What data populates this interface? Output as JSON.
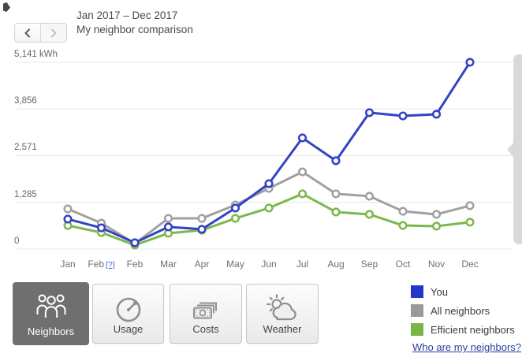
{
  "header": {
    "title": "Jan 2017 – Dec 2017",
    "subtitle": "My neighbor comparison"
  },
  "chart_data": {
    "type": "line",
    "title": "My neighbor comparison",
    "unit": "kWh",
    "categories": [
      "Jan",
      "Feb",
      "Feb",
      "Mar",
      "Apr",
      "May",
      "Jun",
      "Jul",
      "Aug",
      "Sep",
      "Oct",
      "Nov",
      "Dec"
    ],
    "estimated_marker": {
      "index": 1,
      "text": "[?]"
    },
    "series": [
      {
        "name": "You",
        "color": "#3442c4",
        "values": [
          825,
          585,
          175,
          610,
          545,
          1130,
          1800,
          3060,
          2430,
          3755,
          3665,
          3710,
          5141
        ]
      },
      {
        "name": "All neighbors",
        "color": "#a1a1a1",
        "values": [
          1105,
          715,
          150,
          845,
          845,
          1215,
          1670,
          2125,
          1520,
          1455,
          1040,
          955,
          1195
        ]
      },
      {
        "name": "Efficient neighbors",
        "color": "#7cb84d",
        "values": [
          650,
          455,
          110,
          435,
          520,
          845,
          1130,
          1520,
          1020,
          955,
          650,
          630,
          740
        ]
      }
    ],
    "y_ticks": [
      {
        "value": 5141,
        "label": "5,141 kWh"
      },
      {
        "value": 3856,
        "label": "3,856"
      },
      {
        "value": 2571,
        "label": "2,571"
      },
      {
        "value": 1285,
        "label": "1,285"
      },
      {
        "value": 0,
        "label": "0"
      }
    ],
    "ylim": [
      0,
      5141
    ],
    "grid": true,
    "grid_color": "#e7e7e7",
    "legend_position": "bottom-right"
  },
  "tabs": [
    {
      "label": "Neighbors",
      "selected": true
    },
    {
      "label": "Usage",
      "selected": false
    },
    {
      "label": "Costs",
      "selected": false
    },
    {
      "label": "Weather",
      "selected": false
    }
  ],
  "legend": {
    "items": [
      {
        "label": "You",
        "color": "#2336c9"
      },
      {
        "label": "All neighbors",
        "color": "#9a9a9a"
      },
      {
        "label": "Efficient neighbors",
        "color": "#79b445"
      }
    ],
    "link": "Who are my neighbors?"
  }
}
